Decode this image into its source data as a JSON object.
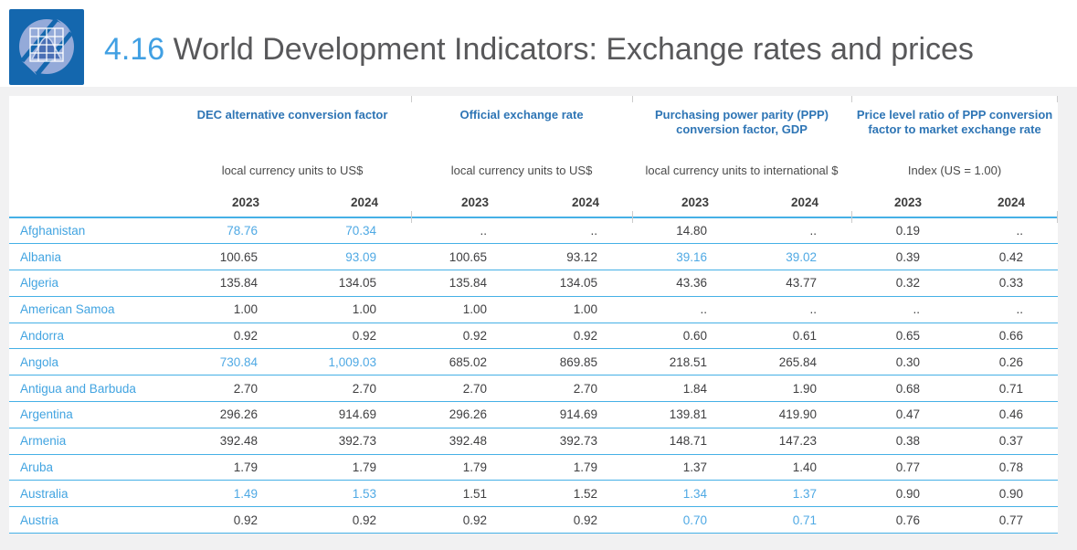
{
  "header": {
    "number": "4.16",
    "title": "World Development Indicators: Exchange rates and prices"
  },
  "colors": {
    "logo_blue": "#1467ae",
    "logo_circle_blue": "#94aad9",
    "title_number_blue": "#41a0e3",
    "title_gray": "#58585a",
    "group_header_blue": "#2e75b5",
    "country_link_blue": "#42a4e1",
    "highlight_value_blue": "#4fa9e4",
    "row_border_blue": "#45b0e6",
    "value_dark": "#3f3f41"
  },
  "table": {
    "missing_value": "..",
    "groups": [
      {
        "title": "DEC alternative conversion factor",
        "unit": "local currency units to US$"
      },
      {
        "title": "Official exchange rate",
        "unit": "local currency units to US$"
      },
      {
        "title": "Purchasing power parity (PPP) conversion factor, GDP",
        "unit": "local currency units to international $"
      },
      {
        "title": "Price level ratio of PPP conversion factor to market exchange rate",
        "unit": "Index (US = 1.00)"
      }
    ],
    "years": [
      "2023",
      "2024",
      "2023",
      "2024",
      "2023",
      "2024",
      "2023",
      "2024"
    ],
    "rows": [
      {
        "country": "Afghanistan",
        "values": [
          {
            "v": "78.76",
            "hl": true
          },
          {
            "v": "70.34",
            "hl": true
          },
          {
            "v": "..",
            "hl": false
          },
          {
            "v": "..",
            "hl": false
          },
          {
            "v": "14.80",
            "hl": false
          },
          {
            "v": "..",
            "hl": false
          },
          {
            "v": "0.19",
            "hl": false
          },
          {
            "v": "..",
            "hl": false
          }
        ]
      },
      {
        "country": "Albania",
        "values": [
          {
            "v": "100.65",
            "hl": false
          },
          {
            "v": "93.09",
            "hl": true
          },
          {
            "v": "100.65",
            "hl": false
          },
          {
            "v": "93.12",
            "hl": false
          },
          {
            "v": "39.16",
            "hl": true
          },
          {
            "v": "39.02",
            "hl": true
          },
          {
            "v": "0.39",
            "hl": false
          },
          {
            "v": "0.42",
            "hl": false
          }
        ]
      },
      {
        "country": "Algeria",
        "values": [
          {
            "v": "135.84",
            "hl": false
          },
          {
            "v": "134.05",
            "hl": false
          },
          {
            "v": "135.84",
            "hl": false
          },
          {
            "v": "134.05",
            "hl": false
          },
          {
            "v": "43.36",
            "hl": false
          },
          {
            "v": "43.77",
            "hl": false
          },
          {
            "v": "0.32",
            "hl": false
          },
          {
            "v": "0.33",
            "hl": false
          }
        ]
      },
      {
        "country": "American Samoa",
        "values": [
          {
            "v": "1.00",
            "hl": false
          },
          {
            "v": "1.00",
            "hl": false
          },
          {
            "v": "1.00",
            "hl": false
          },
          {
            "v": "1.00",
            "hl": false
          },
          {
            "v": "..",
            "hl": false
          },
          {
            "v": "..",
            "hl": false
          },
          {
            "v": "..",
            "hl": false
          },
          {
            "v": "..",
            "hl": false
          }
        ]
      },
      {
        "country": "Andorra",
        "values": [
          {
            "v": "0.92",
            "hl": false
          },
          {
            "v": "0.92",
            "hl": false
          },
          {
            "v": "0.92",
            "hl": false
          },
          {
            "v": "0.92",
            "hl": false
          },
          {
            "v": "0.60",
            "hl": false
          },
          {
            "v": "0.61",
            "hl": false
          },
          {
            "v": "0.65",
            "hl": false
          },
          {
            "v": "0.66",
            "hl": false
          }
        ]
      },
      {
        "country": "Angola",
        "values": [
          {
            "v": "730.84",
            "hl": true
          },
          {
            "v": "1,009.03",
            "hl": true
          },
          {
            "v": "685.02",
            "hl": false
          },
          {
            "v": "869.85",
            "hl": false
          },
          {
            "v": "218.51",
            "hl": false
          },
          {
            "v": "265.84",
            "hl": false
          },
          {
            "v": "0.30",
            "hl": false
          },
          {
            "v": "0.26",
            "hl": false
          }
        ]
      },
      {
        "country": "Antigua and Barbuda",
        "values": [
          {
            "v": "2.70",
            "hl": false
          },
          {
            "v": "2.70",
            "hl": false
          },
          {
            "v": "2.70",
            "hl": false
          },
          {
            "v": "2.70",
            "hl": false
          },
          {
            "v": "1.84",
            "hl": false
          },
          {
            "v": "1.90",
            "hl": false
          },
          {
            "v": "0.68",
            "hl": false
          },
          {
            "v": "0.71",
            "hl": false
          }
        ]
      },
      {
        "country": "Argentina",
        "values": [
          {
            "v": "296.26",
            "hl": false
          },
          {
            "v": "914.69",
            "hl": false
          },
          {
            "v": "296.26",
            "hl": false
          },
          {
            "v": "914.69",
            "hl": false
          },
          {
            "v": "139.81",
            "hl": false
          },
          {
            "v": "419.90",
            "hl": false
          },
          {
            "v": "0.47",
            "hl": false
          },
          {
            "v": "0.46",
            "hl": false
          }
        ]
      },
      {
        "country": "Armenia",
        "values": [
          {
            "v": "392.48",
            "hl": false
          },
          {
            "v": "392.73",
            "hl": false
          },
          {
            "v": "392.48",
            "hl": false
          },
          {
            "v": "392.73",
            "hl": false
          },
          {
            "v": "148.71",
            "hl": false
          },
          {
            "v": "147.23",
            "hl": false
          },
          {
            "v": "0.38",
            "hl": false
          },
          {
            "v": "0.37",
            "hl": false
          }
        ]
      },
      {
        "country": "Aruba",
        "values": [
          {
            "v": "1.79",
            "hl": false
          },
          {
            "v": "1.79",
            "hl": false
          },
          {
            "v": "1.79",
            "hl": false
          },
          {
            "v": "1.79",
            "hl": false
          },
          {
            "v": "1.37",
            "hl": false
          },
          {
            "v": "1.40",
            "hl": false
          },
          {
            "v": "0.77",
            "hl": false
          },
          {
            "v": "0.78",
            "hl": false
          }
        ]
      },
      {
        "country": "Australia",
        "values": [
          {
            "v": "1.49",
            "hl": true
          },
          {
            "v": "1.53",
            "hl": true
          },
          {
            "v": "1.51",
            "hl": false
          },
          {
            "v": "1.52",
            "hl": false
          },
          {
            "v": "1.34",
            "hl": true
          },
          {
            "v": "1.37",
            "hl": true
          },
          {
            "v": "0.90",
            "hl": false
          },
          {
            "v": "0.90",
            "hl": false
          }
        ]
      },
      {
        "country": "Austria",
        "values": [
          {
            "v": "0.92",
            "hl": false
          },
          {
            "v": "0.92",
            "hl": false
          },
          {
            "v": "0.92",
            "hl": false
          },
          {
            "v": "0.92",
            "hl": false
          },
          {
            "v": "0.70",
            "hl": true
          },
          {
            "v": "0.71",
            "hl": true
          },
          {
            "v": "0.76",
            "hl": false
          },
          {
            "v": "0.77",
            "hl": false
          }
        ]
      }
    ]
  }
}
